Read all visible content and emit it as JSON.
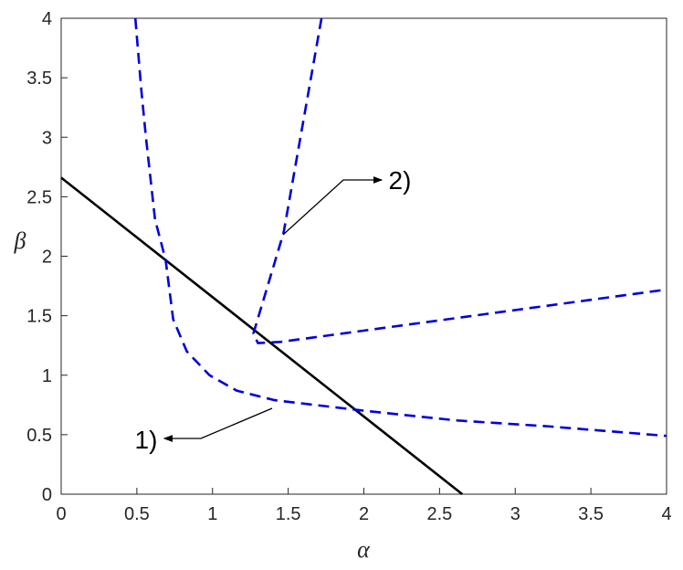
{
  "chart_data": {
    "type": "line",
    "x_label": "α",
    "y_label": "β",
    "xlim": [
      0,
      4
    ],
    "ylim": [
      0,
      4
    ],
    "xticks": [
      0,
      0.5,
      1,
      1.5,
      2,
      2.5,
      3,
      3.5,
      4
    ],
    "yticks": [
      0,
      0.5,
      1,
      1.5,
      2,
      2.5,
      3,
      3.5,
      4
    ],
    "series": [
      {
        "color": "#000000",
        "dashed": false,
        "x": [
          0,
          2.65
        ],
        "values": [
          2.66,
          0
        ]
      },
      {
        "color": "#0000dd",
        "dashed": true,
        "x": [
          0.49,
          0.53,
          0.56,
          0.62,
          0.69,
          0.74,
          0.83,
          0.98,
          1.16,
          1.41,
          2.01,
          2.61,
          3.22,
          4
        ],
        "values": [
          4,
          3.39,
          3.0,
          2.31,
          1.97,
          1.47,
          1.2,
          1.0,
          0.87,
          0.79,
          0.7,
          0.62,
          0.57,
          0.49
        ]
      },
      {
        "color": "#0000dd",
        "dashed": true,
        "x": [
          1.72,
          1.47,
          1.27,
          1.3,
          1.45,
          4
        ],
        "values": [
          4,
          2.2,
          1.35,
          1.27,
          1.28,
          1.72
        ]
      }
    ],
    "annotations": [
      "1)",
      "2)"
    ]
  }
}
